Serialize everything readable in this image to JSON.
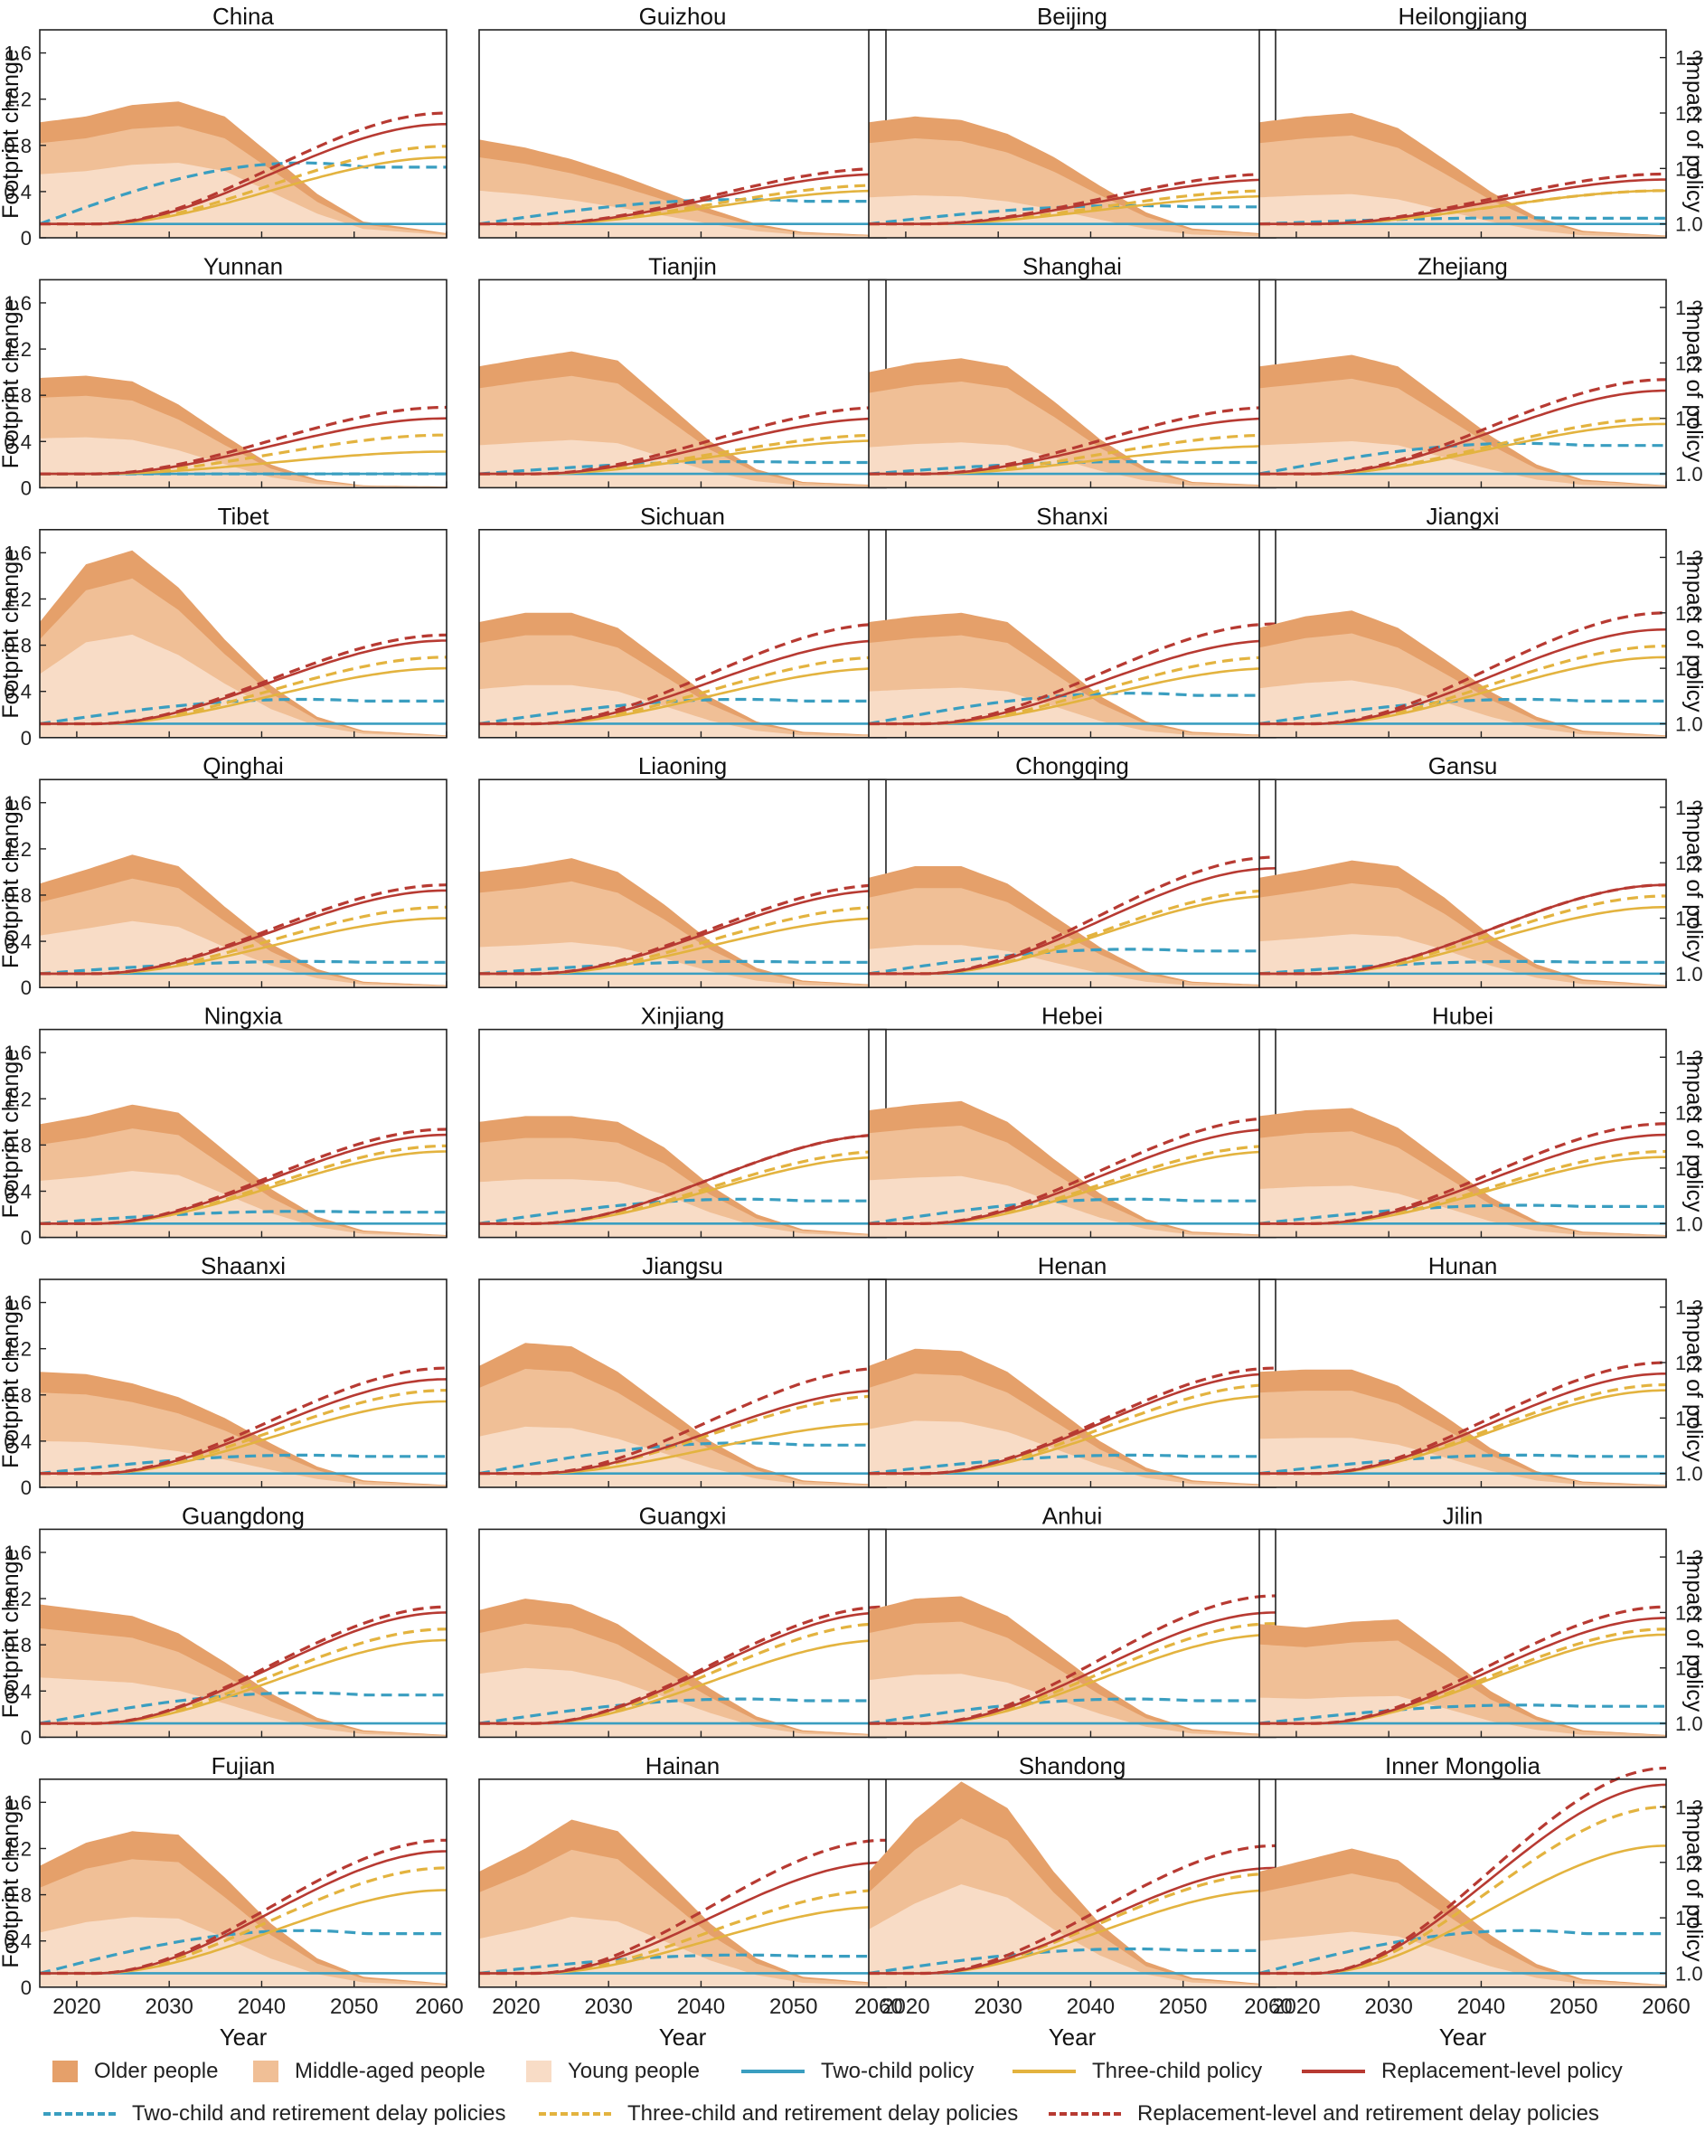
{
  "figure": {
    "y_left_label": "Footprint change",
    "y_right_label": "Impact of policy",
    "x_label": "Year"
  },
  "colors": {
    "older": "#e5a06a",
    "middle": "#f0bf96",
    "young": "#f8dcc6",
    "two_child": "#3a9ec0",
    "three_child": "#e3b33f",
    "replacement": "#b73a32"
  },
  "legend": {
    "older": "Older people",
    "middle": "Middle-aged people",
    "young": "Young people",
    "two_child": "Two-child policy",
    "three_child": "Three-child policy",
    "replacement": "Replacement-level policy",
    "two_child_delay": "Two-child and retirement delay policies",
    "three_child_delay": "Three-child and retirement delay policies",
    "replacement_delay": "Replacement-level and retirement delay policies"
  },
  "chart_data": {
    "type": "area",
    "x_ticks": [
      "2020",
      "2030",
      "2040",
      "2050",
      "2060"
    ],
    "x_range": [
      2016,
      2060
    ],
    "y_left_ticks": [
      "0",
      "0.4",
      "0.8",
      "1.2",
      "1.6"
    ],
    "y_left_range": [
      0,
      1.8
    ],
    "y_right_ticks": [
      "1.0",
      "1.1",
      "1.2",
      "1.3"
    ],
    "y_right_range": [
      0.975,
      1.35
    ],
    "series_names": [
      "Older people",
      "Middle-aged people",
      "Young people",
      "Two-child policy",
      "Three-child policy",
      "Replacement-level policy",
      "Two-child and retirement delay policies",
      "Three-child and retirement delay policies",
      "Replacement-level and retirement delay policies"
    ],
    "panels": [
      {
        "name": "China",
        "shape": [
          1.0,
          1.05,
          1.15,
          1.18,
          1.05,
          0.72,
          0.38,
          0.14,
          0.04
        ],
        "young": 0.55,
        "mid": 0.82,
        "policy": [
          1.1,
          1.12,
          1.14,
          1.18,
          1.2
        ]
      },
      {
        "name": "Guizhou",
        "shape": [
          0.85,
          0.78,
          0.68,
          0.55,
          0.4,
          0.25,
          0.12,
          0.05,
          0.02
        ],
        "young": 0.48,
        "mid": 0.82,
        "policy": [
          1.04,
          1.06,
          1.07,
          1.09,
          1.1
        ]
      },
      {
        "name": "Beijing",
        "shape": [
          1.0,
          1.05,
          1.02,
          0.9,
          0.7,
          0.45,
          0.22,
          0.08,
          0.03
        ],
        "young": 0.35,
        "mid": 0.82,
        "policy": [
          1.03,
          1.05,
          1.06,
          1.08,
          1.09
        ]
      },
      {
        "name": "Heilongjiang",
        "shape": [
          1.0,
          1.05,
          1.08,
          0.95,
          0.68,
          0.4,
          0.18,
          0.06,
          0.02
        ],
        "young": 0.35,
        "mid": 0.82,
        "policy": [
          1.01,
          1.06,
          1.06,
          1.08,
          1.09
        ]
      },
      {
        "name": "Yunnan",
        "shape": [
          0.95,
          0.97,
          0.92,
          0.72,
          0.45,
          0.2,
          0.07,
          0.02,
          0.01
        ],
        "young": 0.45,
        "mid": 0.82,
        "policy": [
          1.0,
          1.04,
          1.07,
          1.1,
          1.12
        ]
      },
      {
        "name": "Tianjin",
        "shape": [
          1.05,
          1.12,
          1.18,
          1.1,
          0.75,
          0.4,
          0.16,
          0.05,
          0.02
        ],
        "young": 0.35,
        "mid": 0.82,
        "policy": [
          1.02,
          1.06,
          1.07,
          1.1,
          1.12
        ]
      },
      {
        "name": "Shanghai",
        "shape": [
          1.0,
          1.08,
          1.12,
          1.05,
          0.75,
          0.42,
          0.17,
          0.05,
          0.02
        ],
        "young": 0.35,
        "mid": 0.82,
        "policy": [
          1.02,
          1.05,
          1.07,
          1.1,
          1.12
        ]
      },
      {
        "name": "Zhejiang",
        "shape": [
          1.05,
          1.1,
          1.15,
          1.05,
          0.75,
          0.45,
          0.2,
          0.07,
          0.02
        ],
        "young": 0.35,
        "mid": 0.82,
        "policy": [
          1.05,
          1.09,
          1.1,
          1.15,
          1.17
        ]
      },
      {
        "name": "Tibet",
        "shape": [
          1.0,
          1.5,
          1.62,
          1.3,
          0.85,
          0.45,
          0.18,
          0.06,
          0.02
        ],
        "young": 0.55,
        "mid": 0.85,
        "policy": [
          1.04,
          1.1,
          1.12,
          1.15,
          1.16
        ]
      },
      {
        "name": "Sichuan",
        "shape": [
          1.0,
          1.08,
          1.08,
          0.95,
          0.65,
          0.35,
          0.14,
          0.05,
          0.02
        ],
        "young": 0.42,
        "mid": 0.82,
        "policy": [
          1.04,
          1.1,
          1.12,
          1.15,
          1.18
        ]
      },
      {
        "name": "Shanxi",
        "shape": [
          1.0,
          1.05,
          1.08,
          1.0,
          0.68,
          0.36,
          0.14,
          0.05,
          0.02
        ],
        "young": 0.4,
        "mid": 0.82,
        "policy": [
          1.05,
          1.1,
          1.12,
          1.15,
          1.18
        ]
      },
      {
        "name": "Jiangxi",
        "shape": [
          0.95,
          1.05,
          1.1,
          0.95,
          0.68,
          0.4,
          0.18,
          0.06,
          0.02
        ],
        "young": 0.45,
        "mid": 0.82,
        "policy": [
          1.04,
          1.12,
          1.14,
          1.17,
          1.2
        ]
      },
      {
        "name": "Qinghai",
        "shape": [
          0.9,
          1.02,
          1.15,
          1.05,
          0.7,
          0.38,
          0.16,
          0.05,
          0.02
        ],
        "young": 0.5,
        "mid": 0.82,
        "policy": [
          1.02,
          1.1,
          1.12,
          1.15,
          1.16
        ]
      },
      {
        "name": "Liaoning",
        "shape": [
          1.0,
          1.05,
          1.12,
          1.0,
          0.72,
          0.4,
          0.17,
          0.06,
          0.02
        ],
        "young": 0.35,
        "mid": 0.82,
        "policy": [
          1.02,
          1.1,
          1.12,
          1.15,
          1.16
        ]
      },
      {
        "name": "Chongqing",
        "shape": [
          0.95,
          1.05,
          1.05,
          0.9,
          0.62,
          0.35,
          0.14,
          0.05,
          0.02
        ],
        "young": 0.35,
        "mid": 0.82,
        "policy": [
          1.04,
          1.14,
          1.15,
          1.19,
          1.21
        ]
      },
      {
        "name": "Gansu",
        "shape": [
          0.95,
          1.02,
          1.1,
          1.05,
          0.78,
          0.45,
          0.2,
          0.07,
          0.02
        ],
        "young": 0.42,
        "mid": 0.82,
        "policy": [
          1.02,
          1.12,
          1.14,
          1.16,
          1.16
        ]
      },
      {
        "name": "Ningxia",
        "shape": [
          0.98,
          1.05,
          1.15,
          1.08,
          0.75,
          0.42,
          0.18,
          0.06,
          0.02
        ],
        "young": 0.5,
        "mid": 0.82,
        "policy": [
          1.02,
          1.13,
          1.14,
          1.16,
          1.17
        ]
      },
      {
        "name": "Xinjiang",
        "shape": [
          1.0,
          1.05,
          1.05,
          1.0,
          0.78,
          0.45,
          0.2,
          0.07,
          0.02
        ],
        "young": 0.48,
        "mid": 0.82,
        "policy": [
          1.04,
          1.12,
          1.13,
          1.16,
          1.16
        ]
      },
      {
        "name": "Hebei",
        "shape": [
          1.1,
          1.15,
          1.18,
          1.0,
          0.68,
          0.38,
          0.16,
          0.05,
          0.02
        ],
        "young": 0.45,
        "mid": 0.82,
        "policy": [
          1.04,
          1.13,
          1.14,
          1.17,
          1.19
        ]
      },
      {
        "name": "Hubei",
        "shape": [
          1.05,
          1.1,
          1.12,
          0.95,
          0.65,
          0.35,
          0.14,
          0.05,
          0.02
        ],
        "young": 0.4,
        "mid": 0.82,
        "policy": [
          1.03,
          1.12,
          1.13,
          1.16,
          1.18
        ]
      },
      {
        "name": "Shaanxi",
        "shape": [
          1.0,
          0.98,
          0.9,
          0.78,
          0.6,
          0.38,
          0.18,
          0.06,
          0.02
        ],
        "young": 0.4,
        "mid": 0.82,
        "policy": [
          1.03,
          1.13,
          1.15,
          1.17,
          1.19
        ]
      },
      {
        "name": "Jiangsu",
        "shape": [
          1.05,
          1.25,
          1.22,
          1.0,
          0.7,
          0.4,
          0.18,
          0.06,
          0.02
        ],
        "young": 0.42,
        "mid": 0.82,
        "policy": [
          1.05,
          1.09,
          1.14,
          1.15,
          1.19
        ]
      },
      {
        "name": "Henan",
        "shape": [
          1.05,
          1.2,
          1.18,
          1.0,
          0.7,
          0.4,
          0.17,
          0.06,
          0.02
        ],
        "young": 0.48,
        "mid": 0.82,
        "policy": [
          1.03,
          1.14,
          1.16,
          1.18,
          1.19
        ]
      },
      {
        "name": "Hunan",
        "shape": [
          1.0,
          1.02,
          1.02,
          0.88,
          0.62,
          0.34,
          0.14,
          0.05,
          0.02
        ],
        "young": 0.42,
        "mid": 0.82,
        "policy": [
          1.03,
          1.15,
          1.16,
          1.18,
          1.2
        ]
      },
      {
        "name": "Guangdong",
        "shape": [
          1.15,
          1.1,
          1.05,
          0.9,
          0.65,
          0.38,
          0.17,
          0.06,
          0.02
        ],
        "young": 0.45,
        "mid": 0.82,
        "policy": [
          1.05,
          1.15,
          1.17,
          1.2,
          1.21
        ]
      },
      {
        "name": "Guangxi",
        "shape": [
          1.1,
          1.2,
          1.15,
          0.98,
          0.7,
          0.42,
          0.18,
          0.06,
          0.02
        ],
        "young": 0.5,
        "mid": 0.82,
        "policy": [
          1.04,
          1.15,
          1.18,
          1.2,
          1.21
        ]
      },
      {
        "name": "Anhui",
        "shape": [
          1.1,
          1.2,
          1.22,
          1.05,
          0.75,
          0.45,
          0.2,
          0.07,
          0.02
        ],
        "young": 0.45,
        "mid": 0.82,
        "policy": [
          1.04,
          1.16,
          1.18,
          1.2,
          1.23
        ]
      },
      {
        "name": "Jilin",
        "shape": [
          0.98,
          0.95,
          1.0,
          1.02,
          0.72,
          0.4,
          0.18,
          0.06,
          0.02
        ],
        "young": 0.35,
        "mid": 0.82,
        "policy": [
          1.03,
          1.16,
          1.17,
          1.19,
          1.21
        ]
      },
      {
        "name": "Fujian",
        "shape": [
          1.05,
          1.25,
          1.35,
          1.32,
          0.95,
          0.55,
          0.25,
          0.09,
          0.03
        ],
        "young": 0.45,
        "mid": 0.82,
        "policy": [
          1.07,
          1.15,
          1.19,
          1.22,
          1.24
        ]
      },
      {
        "name": "Hainan",
        "shape": [
          1.0,
          1.2,
          1.45,
          1.35,
          0.95,
          0.55,
          0.25,
          0.09,
          0.03
        ],
        "young": 0.42,
        "mid": 0.82,
        "policy": [
          1.03,
          1.12,
          1.15,
          1.2,
          1.24
        ]
      },
      {
        "name": "Shandong",
        "shape": [
          1.0,
          1.45,
          1.78,
          1.55,
          1.0,
          0.55,
          0.22,
          0.08,
          0.02
        ],
        "young": 0.5,
        "mid": 0.82,
        "policy": [
          1.04,
          1.15,
          1.18,
          1.19,
          1.23
        ]
      },
      {
        "name": "Inner Mongolia",
        "shape": [
          1.0,
          1.1,
          1.2,
          1.1,
          0.78,
          0.45,
          0.2,
          0.07,
          0.02
        ],
        "young": 0.4,
        "mid": 0.82,
        "policy": [
          1.07,
          1.23,
          1.3,
          1.34,
          1.37
        ]
      }
    ]
  }
}
